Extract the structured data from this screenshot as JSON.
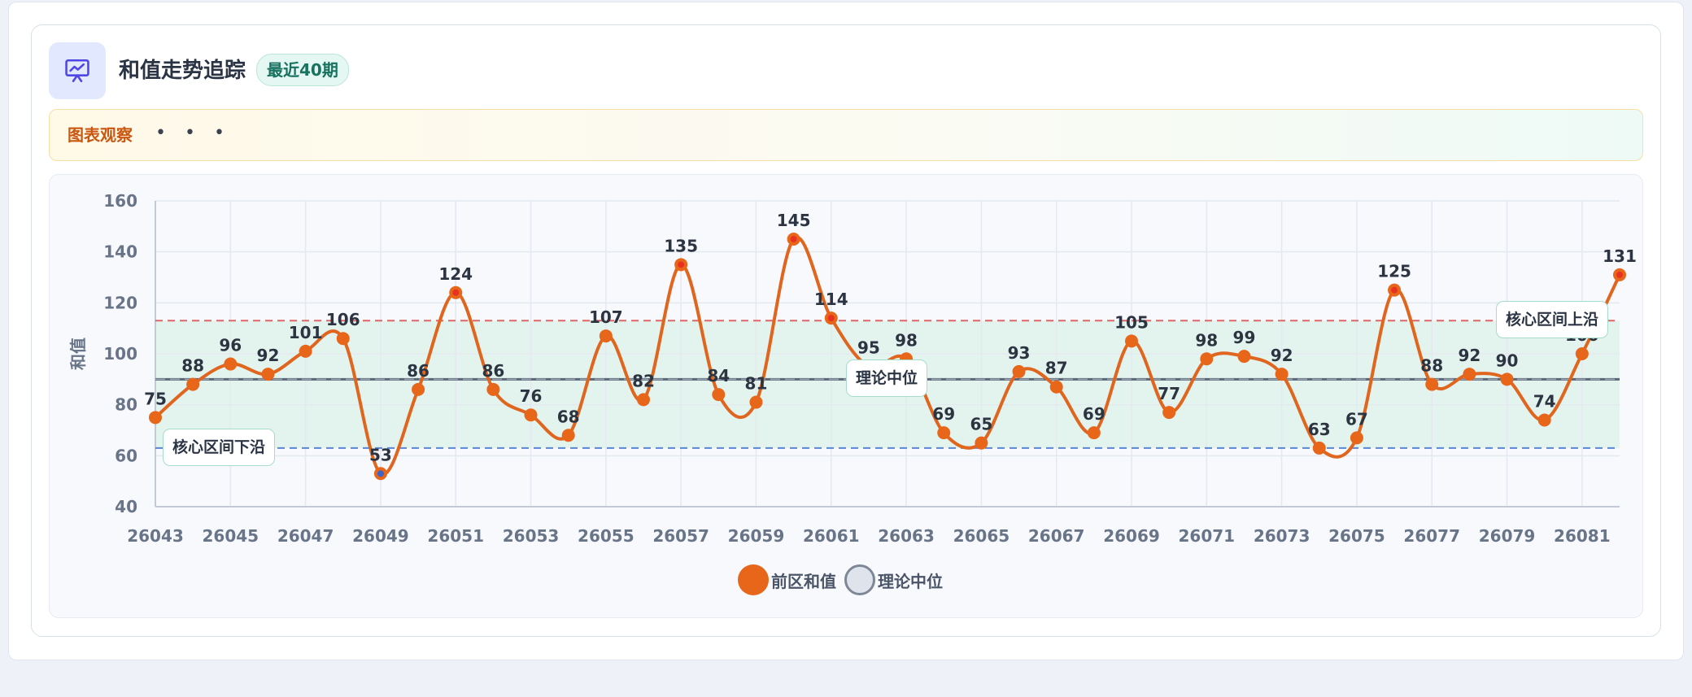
{
  "header": {
    "title": "和值走势追踪",
    "badge": "最近40期",
    "icon": "presentation-chart-icon"
  },
  "observation": {
    "label": "图表观察",
    "dots": "• • •"
  },
  "colors": {
    "line": "#e0661f",
    "point": "#e8661a",
    "high_point": "#e8321f",
    "low_point": "#3b63c9",
    "median_line": "#5b6778",
    "upper_line": "#e06666",
    "lower_line": "#5a86d6",
    "band_fill": "#e3f4ee"
  },
  "callouts": {
    "lower": "核心区间下沿",
    "median": "理论中位",
    "upper": "核心区间上沿"
  },
  "legend": [
    {
      "label": "前区和值",
      "color": "#e8661a",
      "style": "filled"
    },
    {
      "label": "理论中位",
      "color": "#7e8796",
      "style": "ring"
    }
  ],
  "chart_data": {
    "type": "line",
    "ylabel": "和值",
    "ylim": [
      40,
      160
    ],
    "yticks": [
      40,
      60,
      80,
      100,
      120,
      140,
      160
    ],
    "x": [
      "26043",
      "26044",
      "26045",
      "26046",
      "26047",
      "26048",
      "26049",
      "26050",
      "26051",
      "26052",
      "26053",
      "26054",
      "26055",
      "26056",
      "26057",
      "26058",
      "26059",
      "26060",
      "26061",
      "26062",
      "26063",
      "26064",
      "26065",
      "26066",
      "26067",
      "26068",
      "26069",
      "26070",
      "26071",
      "26072",
      "26073",
      "26074",
      "26075",
      "26076",
      "26077",
      "26078",
      "26079",
      "26080",
      "26081",
      "26082"
    ],
    "xticks": [
      "26043",
      "26045",
      "26047",
      "26049",
      "26051",
      "26053",
      "26055",
      "26057",
      "26059",
      "26061",
      "26063",
      "26065",
      "26067",
      "26069",
      "26071",
      "26073",
      "26075",
      "26077",
      "26079",
      "26081"
    ],
    "series": [
      {
        "name": "前区和值",
        "values": [
          75,
          88,
          96,
          92,
          101,
          106,
          53,
          86,
          124,
          86,
          76,
          68,
          107,
          82,
          135,
          84,
          81,
          145,
          114,
          95,
          98,
          69,
          65,
          93,
          87,
          69,
          105,
          77,
          98,
          99,
          92,
          63,
          67,
          125,
          88,
          92,
          90,
          74,
          100,
          131
        ]
      }
    ],
    "reference_lines": {
      "median": 90,
      "core_upper": 113,
      "core_lower": 63
    },
    "grid": true,
    "legend_position": "bottom-center"
  }
}
